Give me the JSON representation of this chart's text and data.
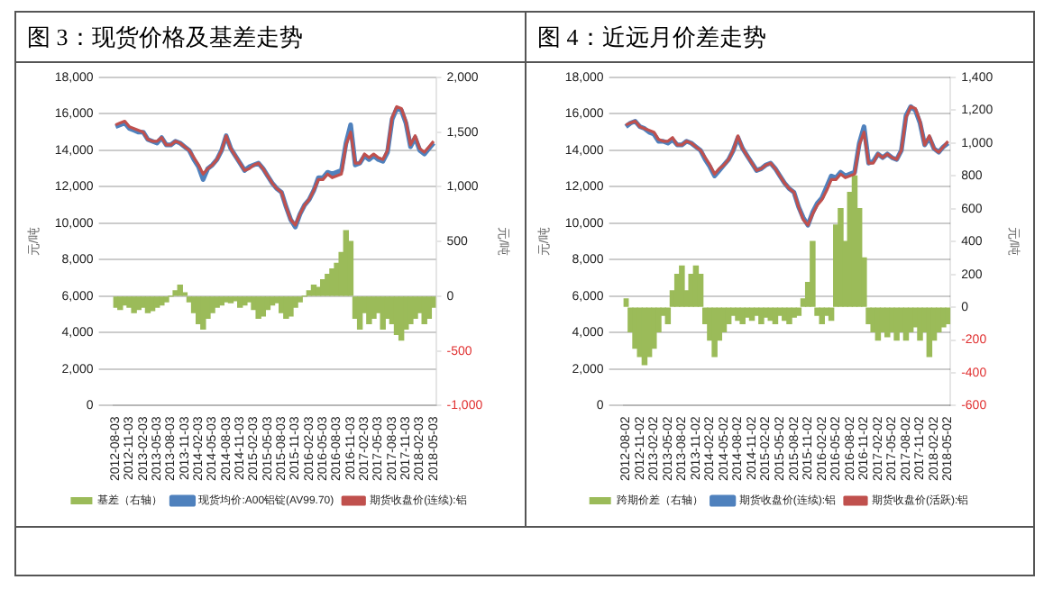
{
  "chart_data": [
    {
      "type": "bar",
      "title": "图 3：现货价格及基差走势",
      "ylabel": "元/吨",
      "y2label": "元/吨",
      "legend": "bottom",
      "grid": "y",
      "marker": "none",
      "categories": [
        "2012-08-03",
        null,
        null,
        "2012-11-03",
        null,
        null,
        "2013-02-03",
        null,
        null,
        "2013-05-03",
        null,
        null,
        "2013-08-03",
        null,
        null,
        "2013-11-03",
        null,
        null,
        "2014-02-03",
        null,
        null,
        "2014-05-03",
        null,
        null,
        "2014-08-03",
        null,
        null,
        "2014-11-03",
        null,
        null,
        "2015-02-03",
        null,
        null,
        "2015-05-03",
        null,
        null,
        "2015-08-03",
        null,
        null,
        "2015-11-03",
        null,
        null,
        "2016-02-03",
        null,
        null,
        "2016-05-03",
        null,
        null,
        "2016-08-03",
        null,
        null,
        "2016-11-03",
        null,
        null,
        "2017-02-03",
        null,
        null,
        "2017-05-03",
        null,
        null,
        "2017-08-03",
        null,
        null,
        "2017-11-03",
        null,
        null,
        "2018-02-03",
        null,
        null,
        "2018-05-03"
      ],
      "ylim": [
        0,
        18000
      ],
      "yticks": [
        0,
        {
          "value": 2000,
          "label": "2,000"
        },
        {
          "value": 4000,
          "label": "4,000"
        },
        {
          "value": 6000,
          "label": "6,000"
        },
        {
          "value": 8000,
          "label": "8,000"
        },
        {
          "value": 10000,
          "label": "10,000"
        },
        {
          "value": 12000,
          "label": "12,000"
        },
        {
          "value": 14000,
          "label": "14,000"
        },
        {
          "value": 16000,
          "label": "16,000"
        },
        {
          "value": 18000,
          "label": "18,000"
        }
      ],
      "y2lim": [
        -1000,
        2000
      ],
      "y2ticks": [
        {
          "value": -1000,
          "label": "-1,000"
        },
        -500,
        0,
        500,
        {
          "value": 1000,
          "label": "1,000"
        },
        {
          "value": 1500,
          "label": "1,500"
        },
        {
          "value": 2000,
          "label": "2,000"
        }
      ],
      "series": [
        {
          "name": "基差（右轴）",
          "axis": "y2",
          "color": "#9bbb59",
          "values": [
            -100,
            -120,
            -80,
            -100,
            -150,
            -120,
            -100,
            -150,
            -130,
            -100,
            -80,
            -50,
            0,
            50,
            100,
            30,
            -50,
            -150,
            -250,
            -300,
            -200,
            -150,
            -100,
            -80,
            -50,
            -60,
            -40,
            -100,
            -80,
            -50,
            -120,
            -200,
            -180,
            -120,
            -80,
            -60,
            -150,
            -200,
            -180,
            -100,
            -50,
            0,
            50,
            100,
            80,
            150,
            200,
            250,
            300,
            400,
            600,
            500,
            -200,
            -300,
            -150,
            -250,
            -200,
            -150,
            -300,
            -200,
            -250,
            -350,
            -400,
            -300,
            -250,
            -200,
            -150,
            -250,
            -200,
            -100
          ]
        },
        {
          "name": "现货均价:A00铝锭(AV99.70)",
          "type": "line",
          "color": "#4f81bd",
          "values": [
            15300,
            15400,
            15500,
            15200,
            15100,
            15000,
            15000,
            14600,
            14500,
            14400,
            14700,
            14300,
            14300,
            14500,
            14400,
            14200,
            14000,
            13500,
            13100,
            12400,
            13000,
            13200,
            13500,
            14000,
            14800,
            14100,
            13700,
            13300,
            12900,
            13100,
            13200,
            13300,
            13000,
            12600,
            12200,
            11900,
            11700,
            10900,
            10200,
            9800,
            10500,
            11000,
            11300,
            11800,
            12500,
            12500,
            12800,
            12700,
            12800,
            12900,
            14400,
            15400,
            13200,
            13300,
            13700,
            13500,
            13700,
            13500,
            13400,
            13900,
            15700,
            16300,
            16200,
            15500,
            14200,
            14700,
            14000,
            13800,
            14100,
            14400
          ]
        },
        {
          "name": "期货收盘价(连续):铝",
          "type": "line",
          "color": "#c0504d",
          "values": [
            15400,
            15500,
            15600,
            15300,
            15200,
            15100,
            15000,
            14600,
            14500,
            14500,
            14700,
            14300,
            14300,
            14500,
            14400,
            14200,
            14000,
            13600,
            13200,
            12700,
            13000,
            13200,
            13500,
            14000,
            14800,
            14100,
            13700,
            13300,
            12900,
            13000,
            13200,
            13300,
            13000,
            12600,
            12200,
            11900,
            11700,
            10900,
            10200,
            9900,
            10500,
            11000,
            11300,
            11800,
            12400,
            12400,
            12700,
            12500,
            12600,
            12700,
            14300,
            15000,
            13300,
            13300,
            13800,
            13600,
            13800,
            13600,
            13500,
            14000,
            15800,
            16400,
            16300,
            15600,
            14300,
            14800,
            14100,
            13900,
            14200,
            14500
          ]
        }
      ]
    },
    {
      "type": "bar",
      "title": "图 4：近远月价差走势",
      "ylabel": "元/吨",
      "y2label": "元/吨",
      "legend": "bottom",
      "grid": "y",
      "marker": "none",
      "categories": [
        "2012-08-02",
        null,
        null,
        "2012-11-02",
        null,
        null,
        "2013-02-02",
        null,
        null,
        "2013-05-02",
        null,
        null,
        "2013-08-02",
        null,
        null,
        "2013-11-02",
        null,
        null,
        "2014-02-02",
        null,
        null,
        "2014-05-02",
        null,
        null,
        "2014-08-02",
        null,
        null,
        "2014-11-02",
        null,
        null,
        "2015-02-02",
        null,
        null,
        "2015-05-02",
        null,
        null,
        "2015-08-02",
        null,
        null,
        "2015-11-02",
        null,
        null,
        "2016-02-02",
        null,
        null,
        "2016-05-02",
        null,
        null,
        "2016-08-02",
        null,
        null,
        "2016-11-02",
        null,
        null,
        "2017-02-02",
        null,
        null,
        "2017-05-02",
        null,
        null,
        "2017-08-02",
        null,
        null,
        "2017-11-02",
        null,
        null,
        "2018-02-02",
        null,
        null,
        "2018-05-02"
      ],
      "ylim": [
        0,
        18000
      ],
      "yticks": [
        0,
        {
          "value": 2000,
          "label": "2,000"
        },
        {
          "value": 4000,
          "label": "4,000"
        },
        {
          "value": 6000,
          "label": "6,000"
        },
        {
          "value": 8000,
          "label": "8,000"
        },
        {
          "value": 10000,
          "label": "10,000"
        },
        {
          "value": 12000,
          "label": "12,000"
        },
        {
          "value": 14000,
          "label": "14,000"
        },
        {
          "value": 16000,
          "label": "16,000"
        },
        {
          "value": 18000,
          "label": "18,000"
        }
      ],
      "y2lim": [
        -600,
        1400
      ],
      "y2ticks": [
        -600,
        -400,
        -200,
        0,
        200,
        400,
        600,
        800,
        {
          "value": 1000,
          "label": "1,000"
        },
        {
          "value": 1200,
          "label": "1,200"
        },
        {
          "value": 1400,
          "label": "1,400"
        }
      ],
      "series": [
        {
          "name": "跨期价差（右轴）",
          "axis": "y2",
          "color": "#9bbb59",
          "values": [
            50,
            -150,
            -250,
            -300,
            -350,
            -300,
            -250,
            -150,
            -50,
            -100,
            100,
            200,
            250,
            100,
            200,
            250,
            200,
            -100,
            -200,
            -300,
            -200,
            -150,
            -100,
            -50,
            -80,
            -100,
            -60,
            -80,
            -50,
            -100,
            -60,
            -80,
            -100,
            -50,
            -80,
            -100,
            -60,
            -50,
            50,
            150,
            400,
            -50,
            -100,
            -50,
            -80,
            500,
            600,
            400,
            700,
            800,
            600,
            300,
            -100,
            -150,
            -200,
            -150,
            -180,
            -150,
            -200,
            -150,
            -200,
            -150,
            -120,
            -200,
            -150,
            -300,
            -200,
            -150,
            -120,
            -100
          ]
        },
        {
          "name": "期货收盘价(连续):铝",
          "type": "line",
          "color": "#4f81bd",
          "values": [
            15300,
            15500,
            15600,
            15300,
            15200,
            15000,
            14900,
            14500,
            14500,
            14400,
            14600,
            14300,
            14300,
            14500,
            14400,
            14200,
            14000,
            13500,
            13100,
            12600,
            12900,
            13200,
            13500,
            14000,
            14700,
            14100,
            13700,
            13300,
            12900,
            13000,
            13200,
            13300,
            13000,
            12600,
            12200,
            11900,
            11700,
            10900,
            10300,
            9900,
            10600,
            11100,
            11400,
            12000,
            12600,
            12500,
            12800,
            12600,
            12700,
            12800,
            14400,
            15300,
            13300,
            13400,
            13800,
            13600,
            13800,
            13600,
            13500,
            14000,
            15900,
            16400,
            16200,
            15500,
            14300,
            14700,
            14100,
            13900,
            14200,
            14400
          ]
        },
        {
          "name": "期货收盘价(活跃):铝",
          "type": "line",
          "color": "#c0504d",
          "values": [
            15400,
            15500,
            15600,
            15300,
            15200,
            15100,
            15000,
            14600,
            14500,
            14500,
            14700,
            14300,
            14300,
            14500,
            14400,
            14200,
            14000,
            13600,
            13200,
            12700,
            13000,
            13200,
            13500,
            14000,
            14800,
            14100,
            13700,
            13300,
            12900,
            13000,
            13200,
            13300,
            13000,
            12600,
            12200,
            11900,
            11700,
            10900,
            10200,
            9900,
            10500,
            11000,
            11300,
            11800,
            12400,
            12400,
            12700,
            12500,
            12600,
            12700,
            14300,
            15000,
            13300,
            13300,
            13800,
            13600,
            13800,
            13600,
            13500,
            14000,
            15800,
            16400,
            16300,
            15600,
            14300,
            14800,
            14100,
            13900,
            14200,
            14500
          ]
        }
      ]
    }
  ]
}
